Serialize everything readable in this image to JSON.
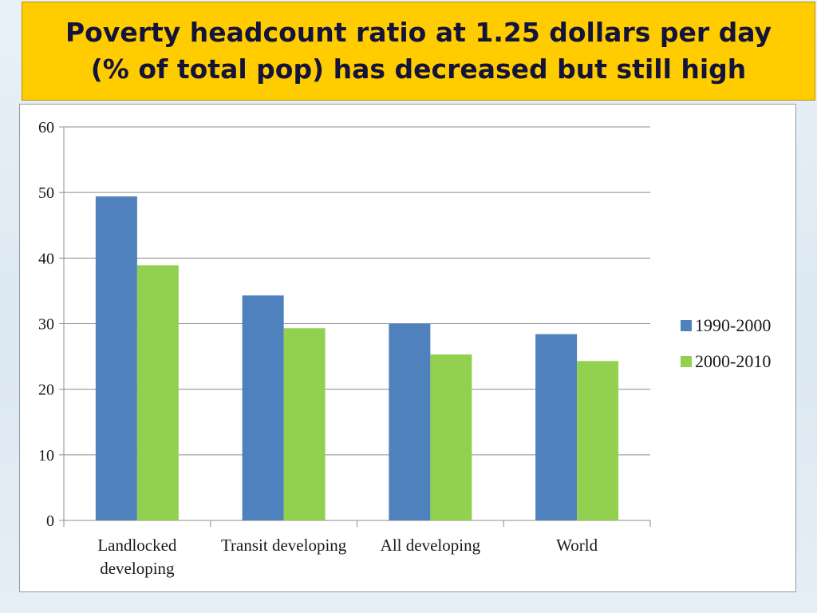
{
  "title": {
    "line1": "Poverty headcount ratio at 1.25 dollars per day",
    "line2": "(% of total pop) has decreased but still high"
  },
  "colors": {
    "title_background": "#ffcc00",
    "title_text": "#14143a"
  },
  "chart_data": {
    "type": "bar",
    "categories": [
      [
        "Landlocked",
        "developing"
      ],
      [
        "Transit developing"
      ],
      [
        "All developing"
      ],
      [
        "World"
      ]
    ],
    "series": [
      {
        "name": "1990-2000",
        "values": [
          49.4,
          34.3,
          30.0,
          28.4
        ],
        "color": "#4f81bd"
      },
      {
        "name": "2000-2010",
        "values": [
          38.9,
          29.3,
          25.3,
          24.3
        ],
        "color": "#92d050"
      }
    ],
    "yticks": [
      "0",
      "10",
      "20",
      "30",
      "40",
      "50",
      "60"
    ],
    "ylim": [
      0,
      60
    ],
    "grid": true,
    "legend_position": "right",
    "xlabel": "",
    "ylabel": ""
  }
}
